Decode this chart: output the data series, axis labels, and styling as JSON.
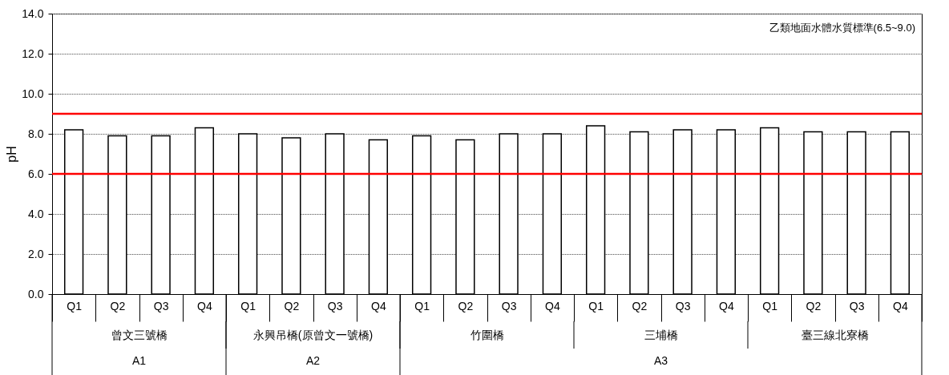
{
  "chart_data": {
    "type": "bar",
    "ylabel": "pH",
    "categories": [
      "Q1",
      "Q2",
      "Q3",
      "Q4",
      "Q1",
      "Q2",
      "Q3",
      "Q4",
      "Q1",
      "Q2",
      "Q3",
      "Q4",
      "Q1",
      "Q2",
      "Q3",
      "Q4",
      "Q1",
      "Q2",
      "Q3",
      "Q4"
    ],
    "values": [
      8.2,
      7.9,
      7.9,
      8.3,
      8.0,
      7.8,
      8.0,
      7.7,
      7.9,
      7.7,
      8.0,
      8.0,
      8.4,
      8.1,
      8.2,
      8.2,
      8.3,
      8.1,
      8.1,
      8.1
    ],
    "color": "#ffffff",
    "ylim": [
      0,
      14
    ],
    "yticks": [
      {
        "value": 0,
        "label": "0.0"
      },
      {
        "value": 2,
        "label": "2.0"
      },
      {
        "value": 4,
        "label": "4.0"
      },
      {
        "value": 6,
        "label": "6.0"
      },
      {
        "value": 8,
        "label": "8.0"
      },
      {
        "value": 10,
        "label": "10.0"
      },
      {
        "value": 12,
        "label": "12.0"
      },
      {
        "value": 14,
        "label": "14.0"
      }
    ],
    "grid": "y",
    "ref_lines": [
      {
        "axis": "y",
        "value": 9.0,
        "color": "#ff0000"
      },
      {
        "axis": "y",
        "value": 6.0,
        "color": "#ff0000"
      }
    ],
    "annotations": [
      "曾文三號橋",
      "永興吊橋(原曾文一號橋)",
      "竹圍橋",
      "三埔橋",
      "臺三線北寮橋",
      "A1",
      "A2",
      "A3",
      "乙類地面水體水質標準(6.5~9.0)"
    ]
  }
}
